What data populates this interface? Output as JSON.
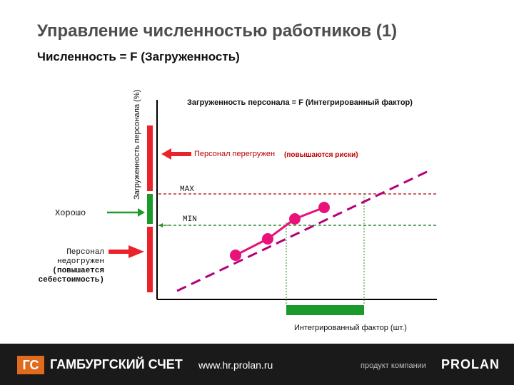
{
  "header": {
    "title": "Управление численностью работников (1)",
    "subtitle": "Численность = F (Загруженность)"
  },
  "diagram": {
    "y_axis_label": "Загруженность персонала (%)",
    "x_axis_label": "Интегрированный фактор (шт.)",
    "formula_label": "Загруженность персонала = F (Интегрированный фактор)",
    "overload_label": "Персонал перегружен",
    "overload_note": "(повышаются риски)",
    "max_label": "MAX",
    "min_label": "MIN",
    "good_label": "Хорошо",
    "underload_lines": [
      "Персонал",
      "недогружен",
      "(повышается",
      "себестоимость)"
    ],
    "colors": {
      "red": "#e8242a",
      "green": "#1a9a2a",
      "curve": "#b5007a",
      "point": "#e8127a"
    }
  },
  "footer": {
    "logo_letters": "ГС",
    "brand": "ГАМБУРГСКИЙ СЧЕТ",
    "site": "www.hr.prolan.ru",
    "product": "продукт компании",
    "company": "PROLAN"
  }
}
